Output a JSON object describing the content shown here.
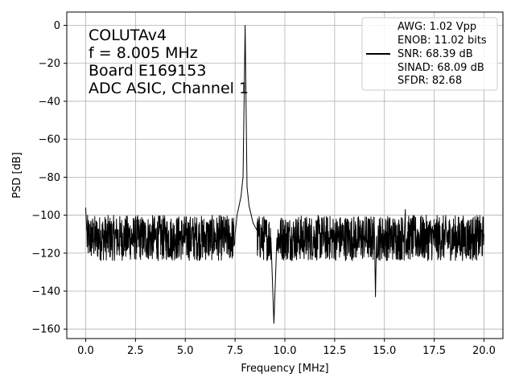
{
  "chart_data": {
    "type": "line",
    "xlabel": "Frequency [MHz]",
    "ylabel": "PSD [dB]",
    "xlim": [
      -0.95,
      20.95
    ],
    "ylim": [
      -165,
      7
    ],
    "xticks": [
      0.0,
      2.5,
      5.0,
      7.5,
      10.0,
      12.5,
      15.0,
      17.5,
      20.0
    ],
    "xtick_labels": [
      "0.0",
      "2.5",
      "5.0",
      "7.5",
      "10.0",
      "12.5",
      "15.0",
      "17.5",
      "20.0"
    ],
    "yticks": [
      0,
      -20,
      -40,
      -60,
      -80,
      -100,
      -120,
      -140,
      -160
    ],
    "ytick_labels": [
      "0",
      "−20",
      "−40",
      "−60",
      "−80",
      "−100",
      "−120",
      "−140",
      "−160"
    ],
    "grid": true,
    "legend_position": "top-right",
    "line_color": "#000000",
    "annotation_lines": [
      "COLUTAv4",
      "f = 8.005 MHz",
      "Board E169153",
      "ADC ASIC, Channel 1"
    ],
    "legend_lines": [
      "AWG: 1.02 Vpp",
      "ENOB: 11.02 bits",
      "SNR: 68.39 dB",
      "SINAD: 68.09 dB",
      "SFDR: 82.68"
    ],
    "series": [
      {
        "x": [
          0.0,
          0.05,
          0.5,
          1.0,
          1.5,
          2.0,
          2.5,
          3.0,
          3.5,
          4.0,
          4.5,
          5.0,
          5.5,
          6.0,
          6.5,
          7.0,
          7.5,
          7.6,
          7.8,
          7.9,
          8.005,
          8.1,
          8.2,
          8.4,
          8.6,
          9.0,
          9.3,
          9.45,
          9.6,
          10.0,
          10.5,
          11.0,
          11.5,
          12.0,
          12.5,
          13.0,
          13.5,
          14.0,
          14.5,
          14.55,
          14.6,
          15.0,
          15.5,
          16.0,
          16.05,
          16.5,
          17.0,
          17.5,
          18.0,
          18.5,
          19.0,
          19.5,
          20.0
        ],
        "y": [
          -96,
          -108,
          -110,
          -112,
          -110,
          -111,
          -112,
          -110,
          -113,
          -111,
          -110,
          -112,
          -111,
          -110,
          -113,
          -111,
          -110,
          -100,
          -90,
          -80,
          0,
          -85,
          -95,
          -104,
          -108,
          -110,
          -112,
          -157,
          -112,
          -110,
          -112,
          -111,
          -110,
          -113,
          -111,
          -110,
          -112,
          -111,
          -110,
          -143,
          -112,
          -110,
          -112,
          -110,
          -97,
          -108,
          -110,
          -112,
          -111,
          -110,
          -112,
          -110,
          -110
        ],
        "noise_band": {
          "lower": -124,
          "upper": -100
        }
      }
    ]
  }
}
